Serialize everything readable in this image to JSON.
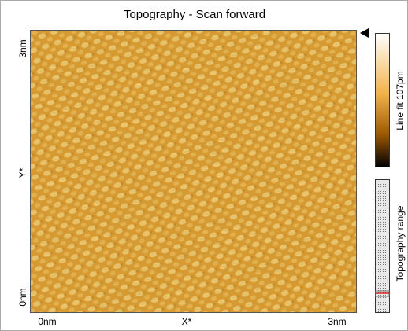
{
  "window": {
    "title": "Topography - Scan forward"
  },
  "image": {
    "y_axis": {
      "top_label": "3nm",
      "label": "Y*",
      "bottom_label": "0nm"
    },
    "x_axis": {
      "left_label": "0nm",
      "label": "X*",
      "right_label": "3nm"
    }
  },
  "color_bar": {
    "label": "Line fit 107pm"
  },
  "range_bar": {
    "label": "Topography range"
  }
}
